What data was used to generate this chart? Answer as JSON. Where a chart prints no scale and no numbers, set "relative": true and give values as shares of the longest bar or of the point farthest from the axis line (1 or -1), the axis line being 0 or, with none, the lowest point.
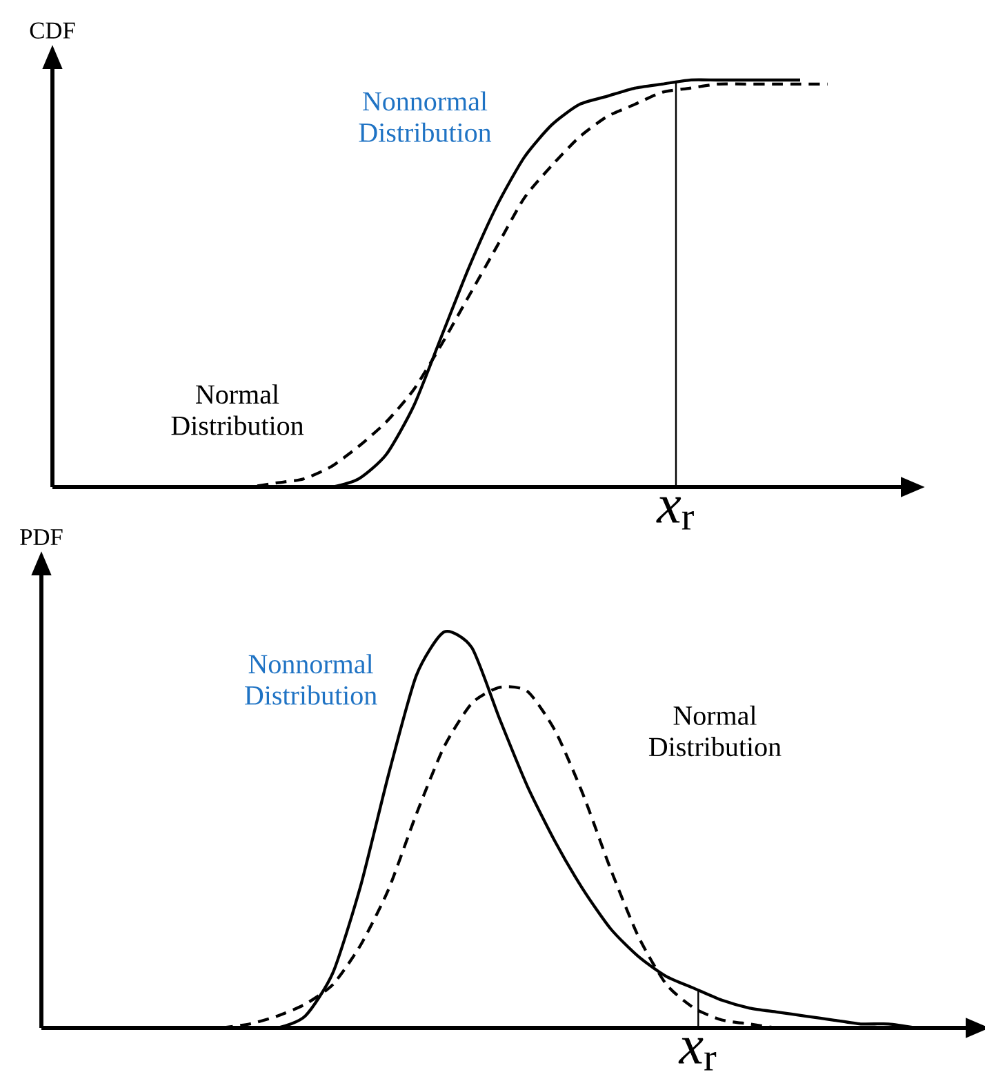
{
  "chart_data": [
    {
      "type": "line",
      "ylabel": "CDF",
      "relative": true,
      "categories": [
        null,
        null,
        null,
        null,
        null,
        null,
        null,
        null,
        null,
        null,
        null,
        null,
        null,
        null,
        null,
        null,
        null,
        null,
        null,
        null,
        null,
        null,
        null
      ],
      "series": [
        {
          "name": "Nonnormal Distribution",
          "color": "#000000",
          "line_style": "solid",
          "values": [
            0,
            0,
            0,
            0,
            0,
            0.02,
            0.08,
            0.2,
            0.37,
            0.54,
            0.69,
            0.81,
            0.89,
            0.94,
            0.96,
            0.98,
            0.99,
            1,
            1,
            1,
            1,
            1,
            null
          ]
        },
        {
          "name": "Normal Distribution",
          "color": "#000000",
          "line_style": "dashed",
          "values": [
            0,
            0,
            0.01,
            0.02,
            0.05,
            0.1,
            0.16,
            0.24,
            0.35,
            0.47,
            0.59,
            0.71,
            0.79,
            0.86,
            0.91,
            0.94,
            0.97,
            0.98,
            0.99,
            0.99,
            0.99,
            0.99,
            0.99
          ]
        }
      ],
      "annotations": [
        "*x*$_{r}$"
      ]
    },
    {
      "type": "line",
      "ylabel": "PDF",
      "relative": true,
      "categories": [
        null,
        null,
        null,
        null,
        null,
        null,
        null,
        null,
        null,
        null,
        null,
        null,
        null,
        null,
        null,
        null,
        null,
        null,
        null,
        null,
        null,
        null,
        null,
        null,
        null,
        null,
        null
      ],
      "series": [
        {
          "name": "Nonnormal Distribution",
          "color": "#000000",
          "line_style": "solid",
          "values": [
            0,
            0,
            0,
            0.03,
            0.14,
            0.36,
            0.64,
            0.89,
            1,
            0.96,
            0.78,
            0.61,
            0.47,
            0.35,
            0.25,
            0.18,
            0.13,
            0.1,
            0.07,
            0.05,
            0.04,
            0.03,
            0.02,
            0.01,
            0.01,
            0,
            null
          ]
        },
        {
          "name": "Normal Distribution",
          "color": "#000000",
          "line_style": "dashed",
          "values": [
            0,
            0.01,
            0.03,
            0.06,
            0.11,
            0.21,
            0.35,
            0.54,
            0.71,
            0.82,
            0.86,
            0.85,
            0.75,
            0.59,
            0.4,
            0.23,
            0.11,
            0.05,
            0.02,
            0.01,
            0,
            0,
            0,
            0,
            0,
            0,
            0
          ]
        }
      ],
      "annotations": [
        "*x*$_{r}$"
      ]
    }
  ]
}
